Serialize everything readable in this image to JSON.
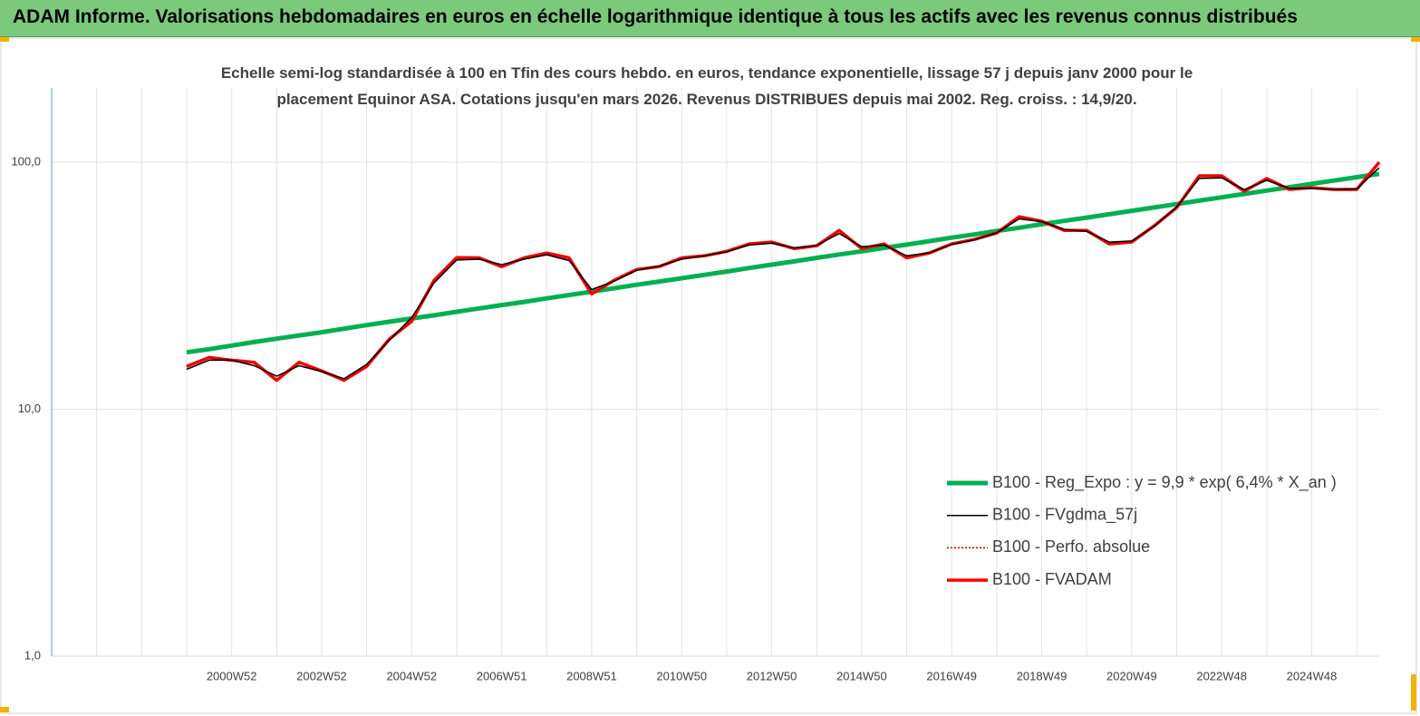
{
  "header": {
    "title": "ADAM Informe. Valorisations hebdomadaires en euros en échelle logarithmique identique à tous les actifs avec les revenus connus distribués"
  },
  "chart_data": {
    "type": "line",
    "title": "Echelle semi-log standardisée à 100 en Tfin des cours hebdo. en euros, tendance exponentielle, lissage 57 j depuis janv 2000 pour le placement Equinor ASA. Cotations jusqu'en mars 2026. Revenus DISTRIBUES depuis mai 2002. Reg. croiss. : 14,9/20.",
    "log_scale": true,
    "grid": true,
    "legend": "lower-right",
    "ylim": [
      1,
      200
    ],
    "yticks": [
      {
        "value": 1,
        "label": "1,0"
      },
      {
        "value": 10,
        "label": "10,0"
      },
      {
        "value": 100,
        "label": "100,0"
      }
    ],
    "categories": [
      null,
      null,
      null,
      null,
      null,
      null,
      null,
      null,
      "2000W52",
      null,
      null,
      null,
      "2002W52",
      null,
      null,
      null,
      "2004W52",
      null,
      null,
      null,
      "2006W51",
      null,
      null,
      null,
      "2008W51",
      null,
      null,
      null,
      "2010W50",
      null,
      null,
      null,
      "2012W50",
      null,
      null,
      null,
      "2014W50",
      null,
      null,
      null,
      "2016W49",
      null,
      null,
      null,
      "2018W49",
      null,
      null,
      null,
      "2020W49",
      null,
      null,
      null,
      "2022W48",
      null,
      null,
      null,
      "2024W48",
      null,
      null,
      null
    ],
    "series": [
      {
        "name": "B100 - Reg_Expo : y = 9,9 * exp( 6,4% *  X_an )",
        "color": "#00b050",
        "width": 5,
        "values": [
          null,
          null,
          null,
          null,
          null,
          null,
          17.0,
          17.5,
          18.1,
          18.7,
          19.3,
          19.9,
          20.5,
          21.2,
          21.9,
          22.6,
          23.3,
          24.0,
          24.8,
          25.6,
          26.4,
          27.2,
          28.1,
          29.0,
          29.9,
          30.9,
          31.9,
          32.9,
          33.9,
          35.0,
          36.1,
          37.3,
          38.5,
          39.7,
          41.0,
          42.3,
          43.6,
          45.0,
          46.4,
          47.9,
          49.5,
          51.0,
          52.7,
          54.3,
          56.1,
          57.9,
          59.7,
          61.6,
          63.6,
          65.6,
          67.7,
          69.9,
          72.1,
          74.4,
          76.8,
          79.2,
          81.7,
          84.3,
          87.0,
          89.8
        ]
      },
      {
        "name": "B100 - FVADAM",
        "color": "#ff0000",
        "width": 3.5,
        "values": [
          null,
          null,
          null,
          null,
          null,
          null,
          14.9,
          16.2,
          15.8,
          15.5,
          13.1,
          15.5,
          14.3,
          13.1,
          14.9,
          19.2,
          22.7,
          33.3,
          41.1,
          41.0,
          37.8,
          41.0,
          42.9,
          41.0,
          29.3,
          33.3,
          36.8,
          37.8,
          41.0,
          41.8,
          43.6,
          46.7,
          47.5,
          44.7,
          45.9,
          53.0,
          44.7,
          46.7,
          41.0,
          42.9,
          46.7,
          48.7,
          51.7,
          60.2,
          57.7,
          53.0,
          53.0,
          46.7,
          47.5,
          55.3,
          65.5,
          88.1,
          88.1,
          76.3,
          85.9,
          77.6,
          78.9,
          77.6,
          77.6,
          100
        ]
      },
      {
        "name": "B100 - Perfo. absolue",
        "color": "#c00000",
        "width": 1.2,
        "dash": "2 2",
        "values": [
          null,
          null,
          null,
          null,
          null,
          null,
          14.9,
          16.2,
          15.8,
          15.5,
          13.1,
          15.5,
          14.3,
          13.1,
          14.9,
          19.2,
          22.7,
          33.3,
          41.1,
          41.0,
          37.8,
          41.0,
          42.9,
          41.0,
          29.3,
          33.3,
          36.8,
          37.8,
          41.0,
          41.8,
          43.6,
          46.7,
          47.5,
          44.7,
          45.9,
          53.0,
          44.7,
          46.7,
          41.0,
          42.9,
          46.7,
          48.7,
          51.7,
          60.2,
          57.7,
          53.0,
          53.0,
          46.7,
          47.5,
          55.3,
          65.5,
          88.1,
          88.1,
          76.3,
          85.9,
          77.6,
          78.9,
          77.6,
          77.6,
          100
        ]
      },
      {
        "name": "B100 - FVgdma_57j",
        "color": "#000000",
        "width": 1.5,
        "values": [
          null,
          null,
          null,
          null,
          null,
          null,
          14.5,
          15.8,
          15.8,
          15.0,
          13.6,
          15.0,
          14.2,
          13.3,
          15.2,
          19.0,
          23.5,
          32.5,
          40.2,
          40.5,
          38.5,
          40.5,
          42.2,
          40.0,
          30.5,
          33.0,
          36.5,
          38.0,
          40.5,
          41.8,
          43.4,
          46.2,
          47.0,
          45.0,
          46.0,
          51.5,
          45.5,
          46.2,
          41.8,
          43.0,
          46.5,
          48.5,
          51.8,
          59.0,
          57.5,
          53.5,
          52.5,
          47.5,
          48.0,
          55.0,
          66.0,
          86.0,
          86.5,
          77.5,
          84.5,
          78.5,
          78.5,
          77.5,
          78.0,
          95.0
        ]
      }
    ]
  }
}
